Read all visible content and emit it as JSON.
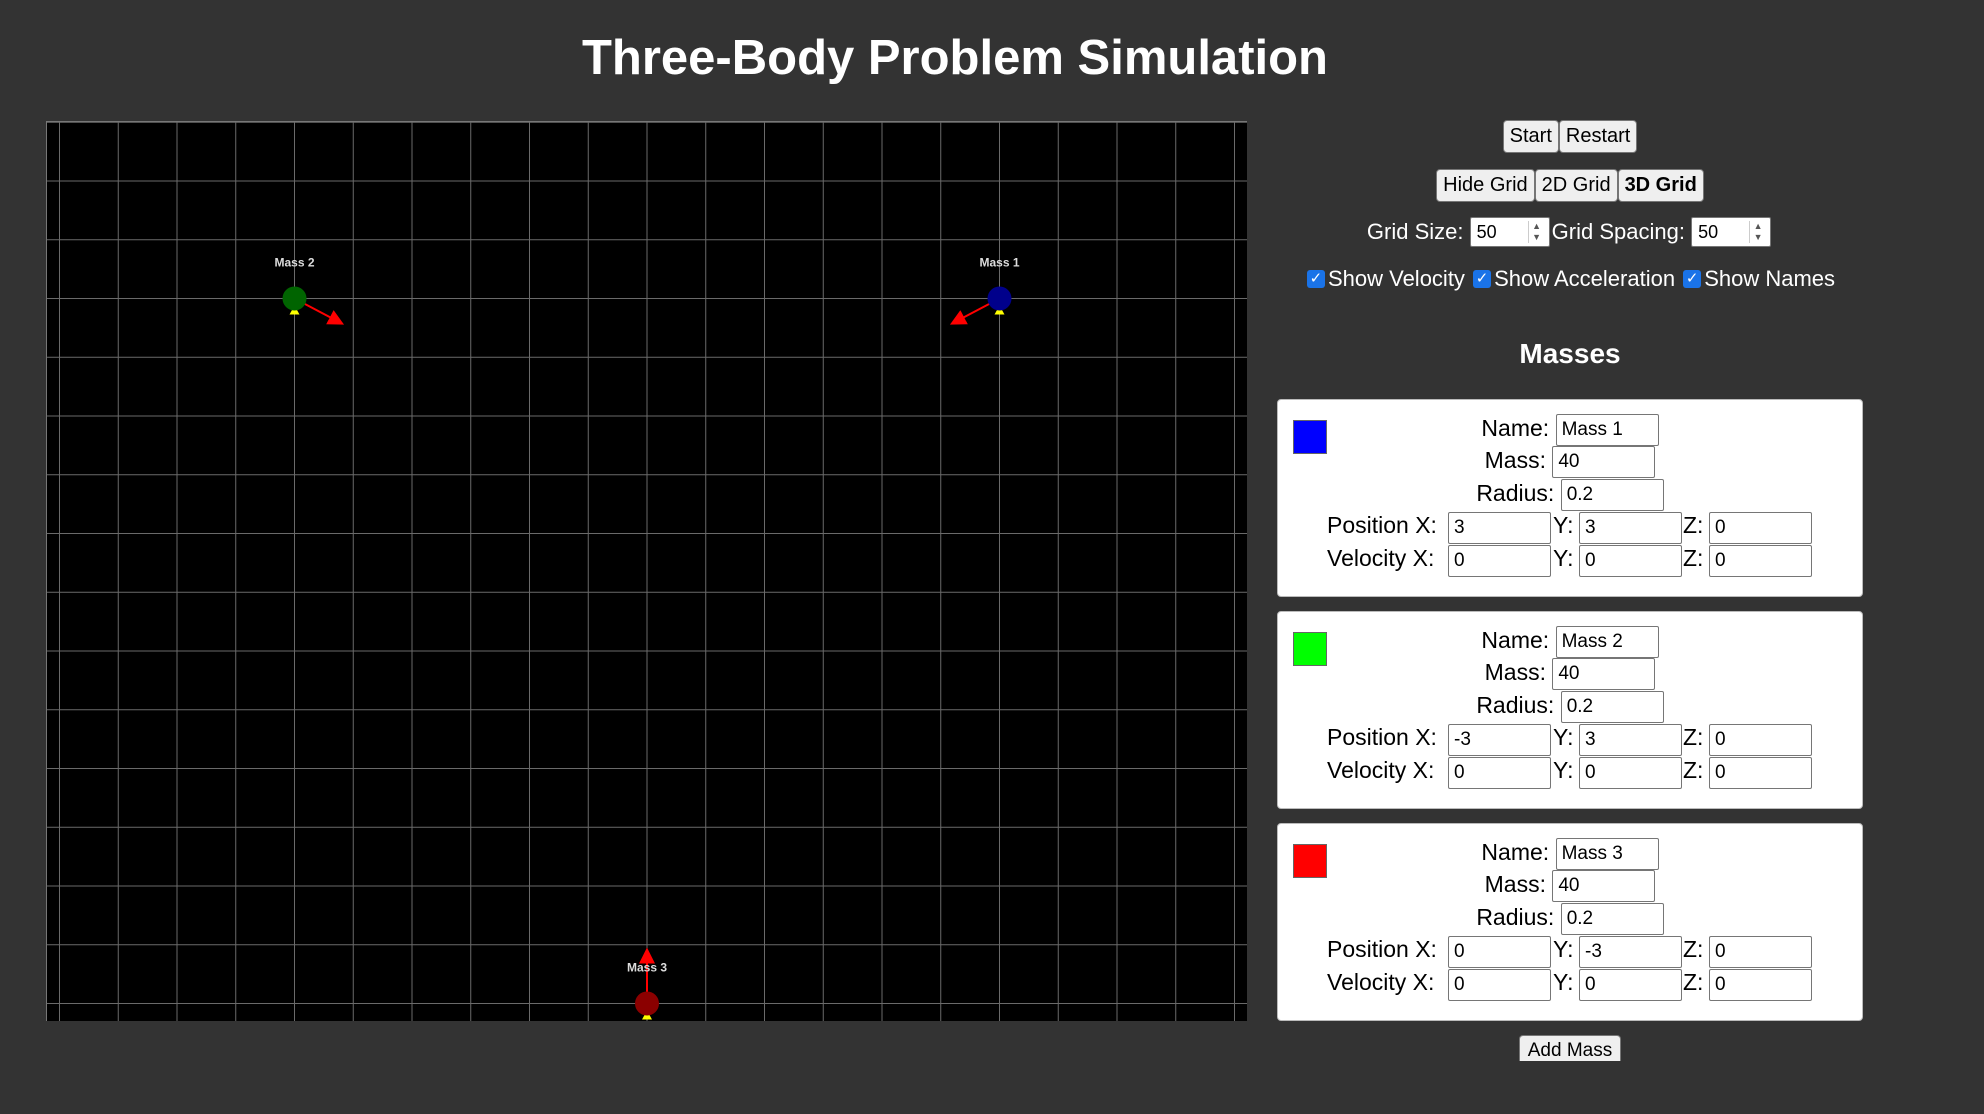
{
  "title": "Three-Body Problem Simulation",
  "controls": {
    "start_label": "Start",
    "restart_label": "Restart",
    "hide_grid_label": "Hide Grid",
    "grid2d_label": "2D Grid",
    "grid3d_label": "3D Grid",
    "grid_size_label": "Grid Size:",
    "grid_size_value": "50",
    "grid_spacing_label": "Grid Spacing:",
    "grid_spacing_value": "50",
    "show_velocity_label": "Show Velocity",
    "show_velocity_checked": true,
    "show_acceleration_label": "Show Acceleration",
    "show_acceleration_checked": true,
    "show_names_label": "Show Names",
    "show_names_checked": true
  },
  "labels": {
    "masses_heading": "Masses",
    "name": "Name:",
    "mass": "Mass:",
    "radius": "Radius:",
    "position_x": "Position X:",
    "velocity_x": "Velocity X:",
    "y": "Y:",
    "z": "Z:",
    "add_mass": "Add Mass"
  },
  "masses": [
    {
      "name": "Mass 1",
      "color": "#0000ff",
      "canvas_color": "#00008b",
      "mass": "40",
      "radius": "0.2",
      "px": "3",
      "py": "3",
      "pz": "0",
      "vx": "0",
      "vy": "0",
      "vz": "0"
    },
    {
      "name": "Mass 2",
      "color": "#00ff00",
      "canvas_color": "#006400",
      "mass": "40",
      "radius": "0.2",
      "px": "-3",
      "py": "3",
      "pz": "0",
      "vx": "0",
      "vy": "0",
      "vz": "0"
    },
    {
      "name": "Mass 3",
      "color": "#ff0000",
      "canvas_color": "#8b0000",
      "mass": "40",
      "radius": "0.2",
      "px": "0",
      "py": "-3",
      "pz": "0",
      "vx": "0",
      "vy": "0",
      "vz": "0"
    }
  ]
}
